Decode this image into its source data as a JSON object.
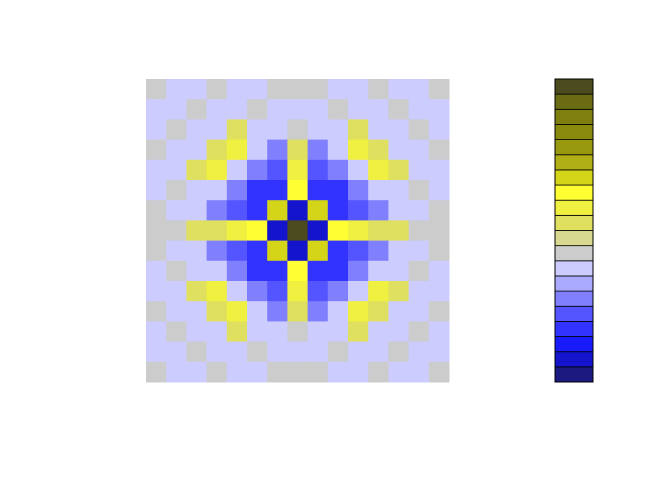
{
  "chart_data": {
    "type": "filled_contour",
    "colors": [
      "#1a1a80",
      "#1414cc",
      "#1a1aff",
      "#3333ff",
      "#5555ff",
      "#8080ff",
      "#aaaaff",
      "#ccccff",
      "#cccccc",
      "#d8d890",
      "#e0e060",
      "#f0f040",
      "#ffff33",
      "#d4d418",
      "#b0b015",
      "#999910",
      "#8a8a0d",
      "#7f7f10",
      "#6b6b14",
      "#4b4b1e"
    ],
    "z": [
      [
        8,
        7,
        7,
        8,
        7,
        7,
        8,
        8,
        8,
        7,
        7,
        8,
        7,
        7,
        8
      ],
      [
        7,
        7,
        8,
        7,
        7,
        8,
        7,
        7,
        7,
        8,
        7,
        7,
        8,
        7,
        7
      ],
      [
        7,
        8,
        7,
        7,
        10,
        7,
        7,
        8,
        7,
        7,
        10,
        7,
        7,
        8,
        7
      ],
      [
        8,
        7,
        7,
        10,
        11,
        7,
        5,
        10,
        5,
        7,
        11,
        10,
        7,
        7,
        8
      ],
      [
        7,
        7,
        10,
        11,
        7,
        5,
        4,
        11,
        4,
        5,
        7,
        11,
        10,
        7,
        7
      ],
      [
        7,
        8,
        7,
        7,
        5,
        3,
        3,
        12,
        3,
        3,
        5,
        7,
        7,
        8,
        7
      ],
      [
        8,
        7,
        7,
        5,
        4,
        3,
        13,
        1,
        13,
        3,
        4,
        5,
        7,
        7,
        8
      ],
      [
        8,
        8,
        10,
        10,
        11,
        12,
        1,
        19,
        1,
        12,
        11,
        10,
        10,
        8,
        8
      ],
      [
        8,
        7,
        7,
        5,
        4,
        3,
        13,
        1,
        13,
        3,
        4,
        5,
        7,
        7,
        8
      ],
      [
        7,
        8,
        7,
        7,
        5,
        3,
        3,
        12,
        3,
        3,
        5,
        7,
        7,
        8,
        7
      ],
      [
        7,
        7,
        10,
        11,
        7,
        5,
        4,
        11,
        4,
        5,
        7,
        11,
        10,
        7,
        7
      ],
      [
        8,
        7,
        7,
        10,
        11,
        7,
        5,
        10,
        5,
        7,
        11,
        10,
        7,
        7,
        8
      ],
      [
        7,
        8,
        7,
        7,
        10,
        7,
        7,
        8,
        7,
        7,
        10,
        7,
        7,
        8,
        7
      ],
      [
        7,
        7,
        8,
        7,
        7,
        8,
        7,
        7,
        7,
        8,
        7,
        7,
        8,
        7,
        7
      ],
      [
        8,
        7,
        7,
        8,
        7,
        7,
        8,
        8,
        8,
        7,
        7,
        8,
        7,
        7,
        8
      ]
    ]
  }
}
